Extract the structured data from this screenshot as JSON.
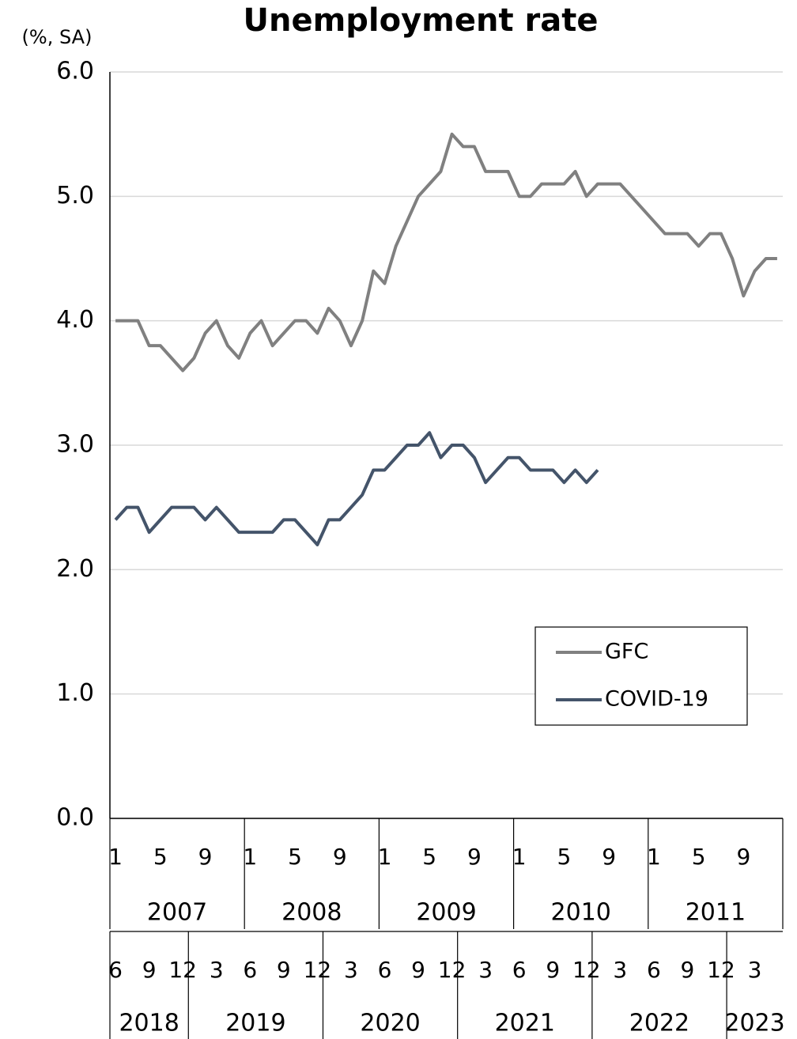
{
  "chart_data": {
    "type": "line",
    "title": "Unemployment rate",
    "y_label": "(%, SA)",
    "categories": [
      "1",
      null,
      null,
      null,
      "5",
      null,
      null,
      null,
      "9",
      null,
      null,
      null,
      "1",
      null,
      null,
      null,
      "5",
      null,
      null,
      null,
      "9",
      null,
      null,
      null,
      "1",
      null,
      null,
      null,
      "5",
      null,
      null,
      null,
      "9",
      null,
      null,
      null,
      "1",
      null,
      null,
      null,
      "5",
      null,
      null,
      null,
      "9",
      null,
      null,
      null,
      "1",
      null,
      null,
      null,
      "5",
      null,
      null,
      null,
      "9",
      null,
      null,
      null
    ],
    "category_groups": [
      {
        "label": "2007",
        "size": 12
      },
      {
        "label": "2008",
        "size": 12
      },
      {
        "label": "2009",
        "size": 12
      },
      {
        "label": "2010",
        "size": 12
      },
      {
        "label": "2011",
        "size": 12
      }
    ],
    "categories2": [
      "6",
      null,
      null,
      "9",
      null,
      null,
      "12",
      null,
      null,
      "3",
      null,
      null,
      "6",
      null,
      null,
      "9",
      null,
      null,
      "12",
      null,
      null,
      "3",
      null,
      null,
      "6",
      null,
      null,
      "9",
      null,
      null,
      "12",
      null,
      null,
      "3",
      null,
      null,
      "6",
      null,
      null,
      "9",
      null,
      null,
      "12",
      null,
      null,
      "3",
      null,
      null,
      "6",
      null,
      null,
      "9",
      null,
      null,
      "12",
      null,
      null,
      "3",
      null,
      null
    ],
    "category2_groups": [
      {
        "label": "2018",
        "size": 7
      },
      {
        "label": "2019",
        "size": 12
      },
      {
        "label": "2020",
        "size": 12
      },
      {
        "label": "2021",
        "size": 12
      },
      {
        "label": "2022",
        "size": 12
      },
      {
        "label": "2023",
        "size": 5
      }
    ],
    "series": [
      {
        "name": "GFC",
        "color": "#808080",
        "values": [
          4.0,
          4.0,
          4.0,
          3.8,
          3.8,
          3.7,
          3.6,
          3.7,
          3.9,
          4.0,
          3.8,
          3.7,
          3.9,
          4.0,
          3.8,
          3.9,
          4.0,
          4.0,
          3.9,
          4.1,
          4.0,
          3.8,
          4.0,
          4.4,
          4.3,
          4.6,
          4.8,
          5.0,
          5.1,
          5.2,
          5.5,
          5.4,
          5.4,
          5.2,
          5.2,
          5.2,
          5.0,
          5.0,
          5.1,
          5.1,
          5.1,
          5.2,
          5.0,
          5.1,
          5.1,
          5.1,
          5.0,
          4.9,
          4.8,
          4.7,
          4.7,
          4.7,
          4.6,
          4.7,
          4.7,
          4.5,
          4.2,
          4.4,
          4.5,
          4.5
        ]
      },
      {
        "name": "COVID-19",
        "color": "#44546a",
        "values": [
          2.4,
          2.5,
          2.5,
          2.3,
          2.4,
          2.5,
          2.5,
          2.5,
          2.4,
          2.5,
          2.4,
          2.3,
          2.3,
          2.3,
          2.3,
          2.4,
          2.4,
          2.3,
          2.2,
          2.4,
          2.4,
          2.5,
          2.6,
          2.8,
          2.8,
          2.9,
          3.0,
          3.0,
          3.1,
          2.9,
          3.0,
          3.0,
          2.9,
          2.7,
          2.8,
          2.9,
          2.9,
          2.8,
          2.8,
          2.8,
          2.7,
          2.8,
          2.7,
          2.8,
          null,
          null,
          null,
          null,
          null,
          null,
          null,
          null,
          null,
          null,
          null,
          null,
          null,
          null,
          null,
          null
        ]
      }
    ],
    "ylim": [
      0,
      6
    ],
    "yticks": [
      {
        "value": 0,
        "label": "0.0"
      },
      {
        "value": 1,
        "label": "1.0"
      },
      {
        "value": 2,
        "label": "2.0"
      },
      {
        "value": 3,
        "label": "3.0"
      },
      {
        "value": 4,
        "label": "4.0"
      },
      {
        "value": 5,
        "label": "5.0"
      },
      {
        "value": 6,
        "label": "6.0"
      }
    ],
    "grid": true,
    "legend": "lower right"
  }
}
